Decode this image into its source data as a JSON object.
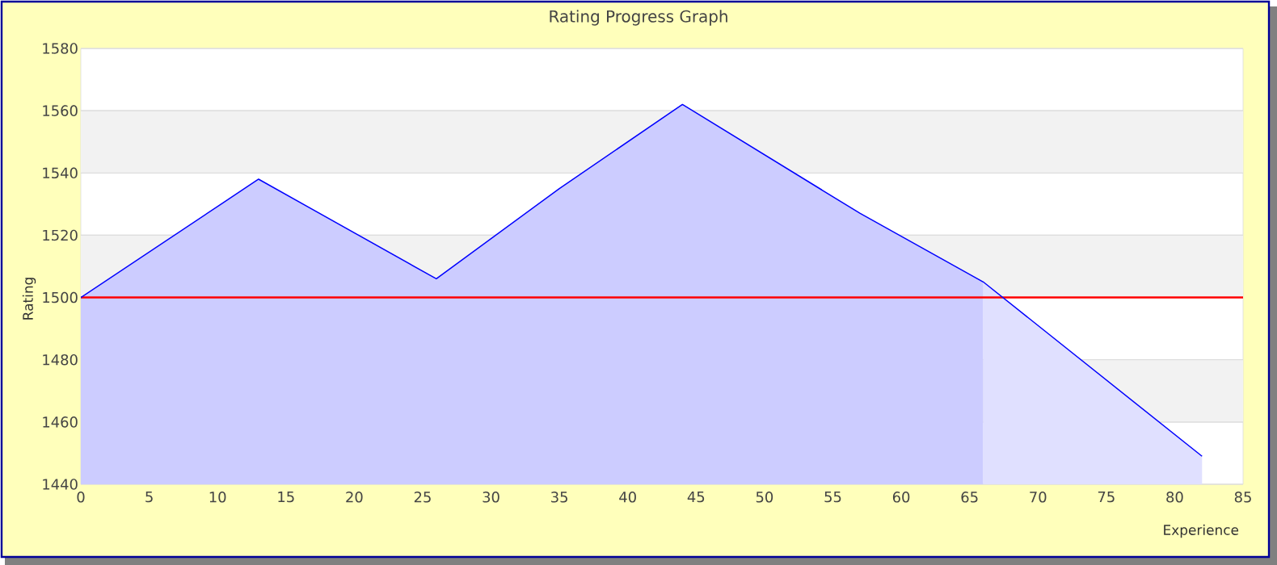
{
  "chart_data": {
    "type": "line",
    "title": "Rating Progress Graph",
    "xlabel": "Experience",
    "ylabel": "Rating",
    "series": [
      {
        "type": "area",
        "color": "#ccccff",
        "x": [
          0,
          13,
          26,
          35,
          44,
          57,
          66
        ],
        "values": [
          1500,
          1538,
          1506,
          1535,
          1562,
          1527,
          1505
        ]
      },
      {
        "type": "area",
        "color": "#e0e0ff",
        "x": [
          66,
          82
        ],
        "values": [
          1505,
          1449
        ]
      },
      {
        "color": "#0000ff",
        "x": [
          0,
          13,
          26,
          35,
          44,
          57,
          66,
          82
        ],
        "values": [
          1500,
          1538,
          1506,
          1535,
          1562,
          1527,
          1505,
          1449
        ]
      }
    ],
    "xlim": [
      0,
      85
    ],
    "xticks": [
      0,
      5,
      10,
      15,
      20,
      25,
      30,
      35,
      40,
      45,
      50,
      55,
      60,
      65,
      70,
      75,
      80,
      85
    ],
    "ylim": [
      1440,
      1580
    ],
    "yticks": [
      1440,
      1460,
      1480,
      1500,
      1520,
      1540,
      1560,
      1580
    ],
    "grid": "y",
    "ref_lines": [
      {
        "axis": "y",
        "value": 1500,
        "color": "#ff0000"
      }
    ],
    "bands": [
      {
        "axis": "y",
        "from": 1460,
        "to": 1480,
        "color": "#f2f2f2"
      },
      {
        "axis": "y",
        "from": 1500,
        "to": 1520,
        "color": "#f2f2f2"
      },
      {
        "axis": "y",
        "from": 1540,
        "to": 1560,
        "color": "#f2f2f2"
      }
    ]
  }
}
